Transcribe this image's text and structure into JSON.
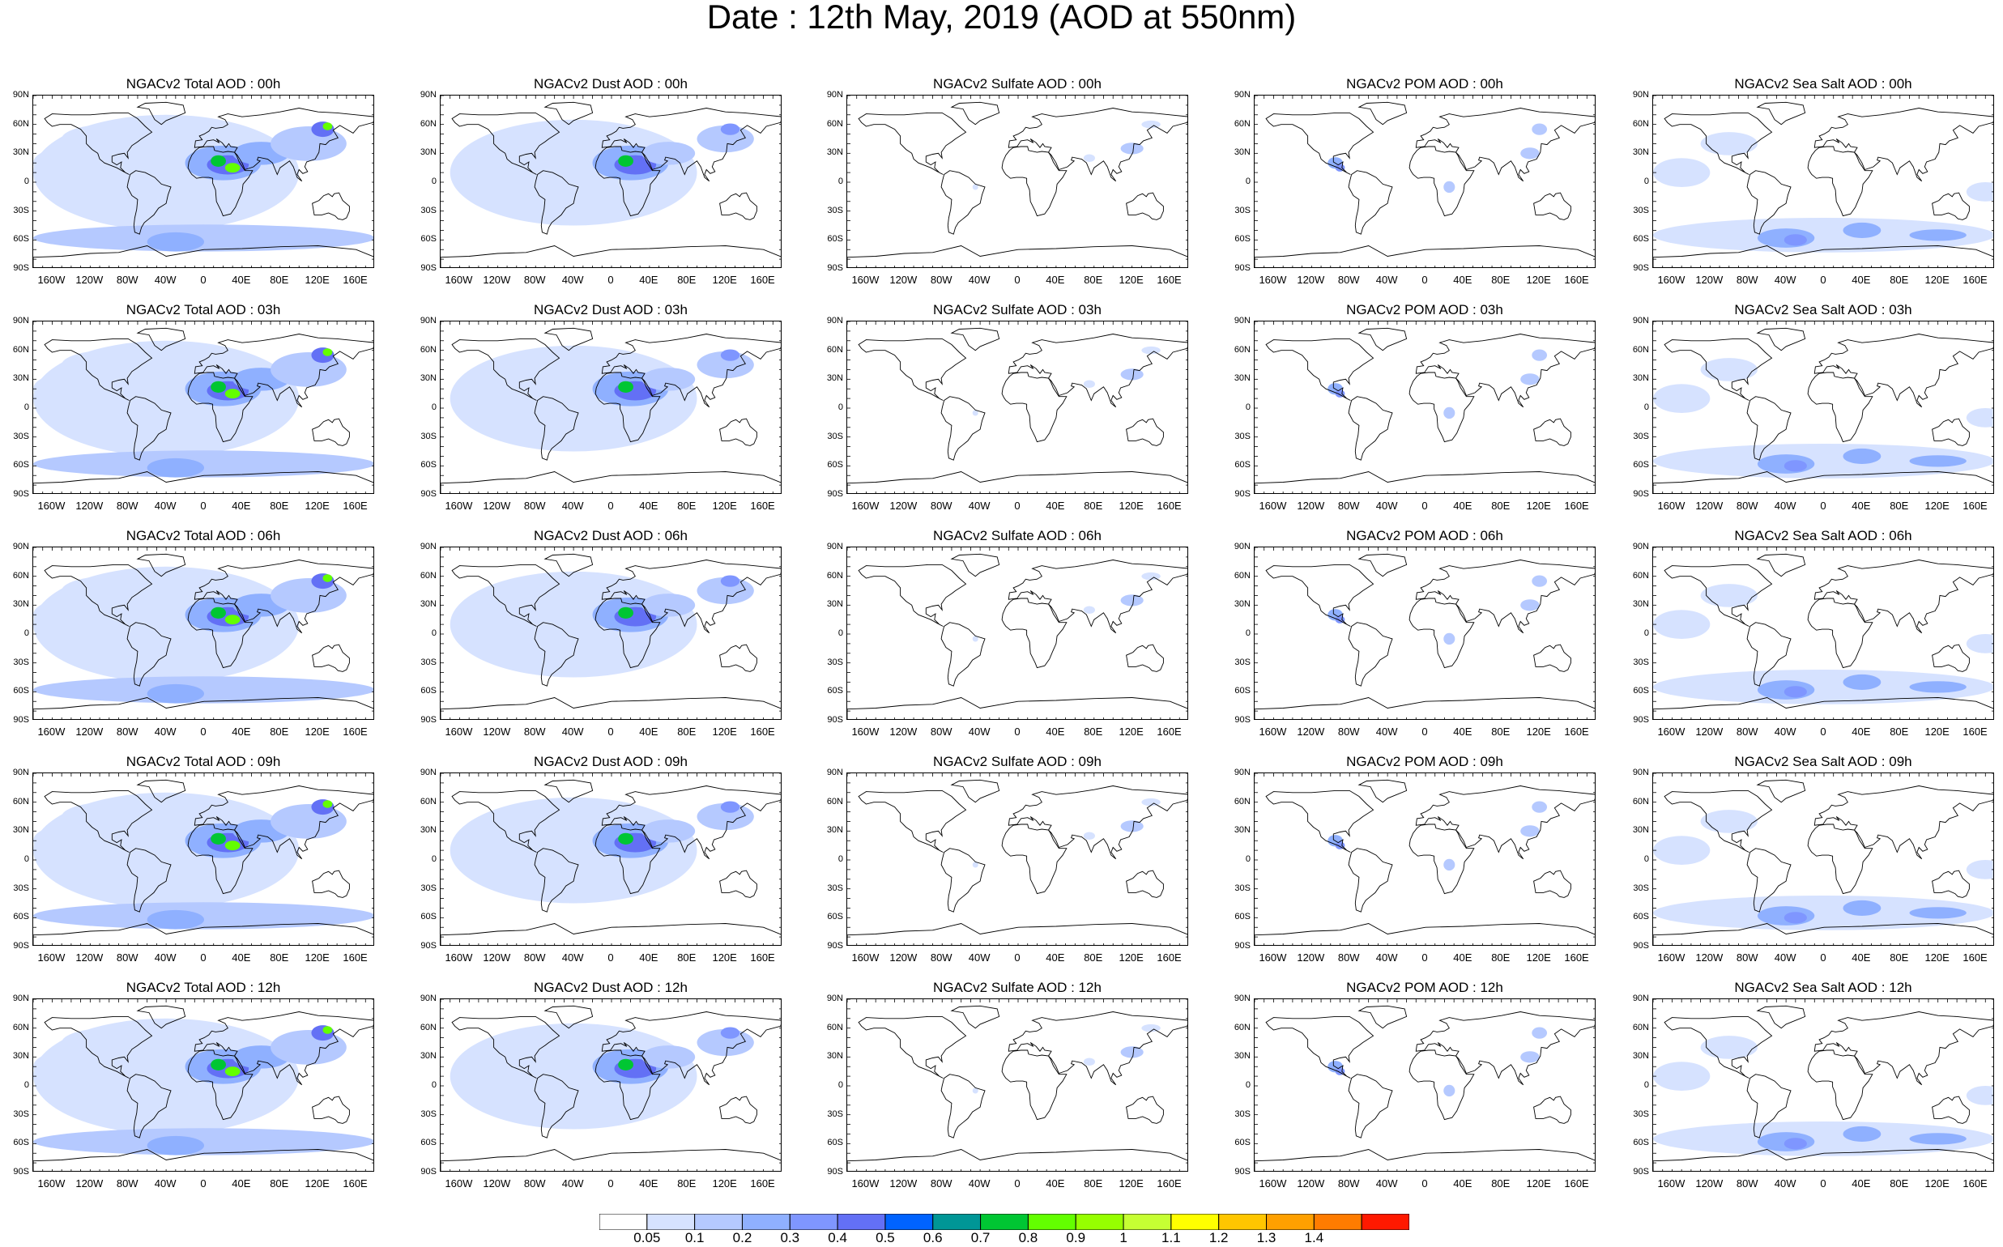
{
  "title": "Date : 12th May, 2019 (AOD at 550nm)",
  "rows": [
    {
      "titles": [
        "NGACv2 Total AOD : 00h",
        "NGACv2 Dust AOD : 00h",
        "NGACv2 Sulfate AOD : 00h",
        "NGACv2 POM AOD : 00h",
        "NGACv2 Sea Salt AOD : 00h"
      ]
    },
    {
      "titles": [
        "NGACv2 Total AOD : 03h",
        "NGACv2 Dust AOD : 03h",
        "NGACv2 Sulfate AOD : 03h",
        "NGACv2 POM AOD : 03h",
        "NGACv2 Sea Salt AOD : 03h"
      ]
    },
    {
      "titles": [
        "NGACv2 Total AOD : 06h",
        "NGACv2 Dust AOD : 06h",
        "NGACv2 Sulfate AOD : 06h",
        "NGACv2 POM AOD : 06h",
        "NGACv2 Sea Salt AOD : 06h"
      ]
    },
    {
      "titles": [
        "NGACv2 Total AOD : 09h",
        "NGACv2 Dust AOD : 09h",
        "NGACv2 Sulfate AOD : 09h",
        "NGACv2 POM AOD : 09h",
        "NGACv2 Sea Salt  AOD : 09h"
      ]
    },
    {
      "titles": [
        "NGACv2 Total AOD :  12h",
        "NGACv2 Dust AOD : 12h",
        "NGACv2 Sulfate AOD : 12h",
        "NGACv2 POM  AOD : 12h",
        "NGACv2 Sea Salt  AOD : 12h"
      ]
    }
  ],
  "lat_labels": [
    "90N",
    "60N",
    "30N",
    "0",
    "30S",
    "60S",
    "90S"
  ],
  "lon_labels": [
    "160W",
    "120W",
    "80W",
    "40W",
    "0",
    "40E",
    "80E",
    "120E",
    "160E"
  ],
  "colorbar": {
    "ticks": [
      "0.05",
      "0.1",
      "0.2",
      "0.3",
      "0.4",
      "0.5",
      "0.6",
      "0.7",
      "0.8",
      "0.9",
      "1",
      "1.1",
      "1.2",
      "1.3",
      "1.4"
    ],
    "colors": [
      "#ffffff",
      "#d6e2ff",
      "#b5c9ff",
      "#8fb0ff",
      "#7f96ff",
      "#6370f5",
      "#0063ff",
      "#009696",
      "#00c633",
      "#63ff00",
      "#96ff00",
      "#c6ff33",
      "#ffff00",
      "#ffc600",
      "#ffa000",
      "#ff7c00",
      "#ff1900"
    ]
  },
  "species_colors": {
    "total": "#8fb0ff",
    "dust": "#8fb0ff",
    "sulfate": "#b5c9ff",
    "pom": "#b5c9ff",
    "seasalt": "#b5c9ff"
  }
}
